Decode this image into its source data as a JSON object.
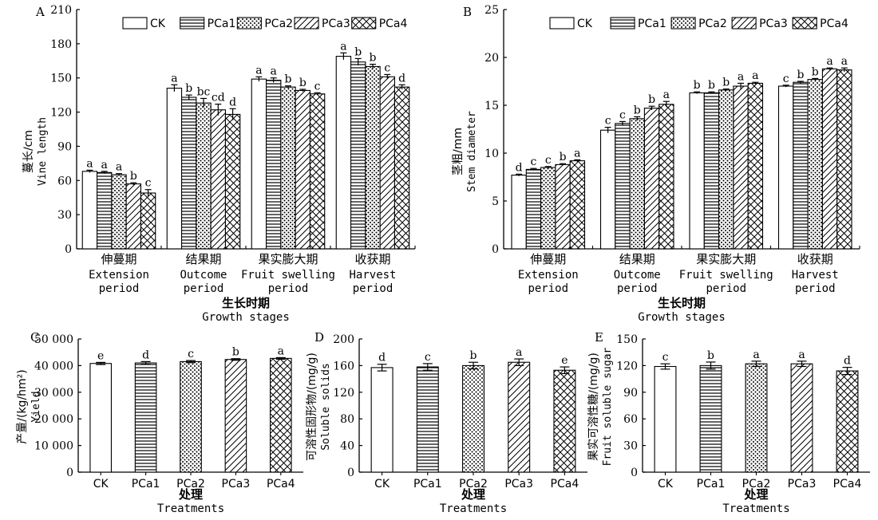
{
  "legend_labels": [
    "CK",
    "PCa1",
    "PCa2",
    "PCa3",
    "PCa4"
  ],
  "series_patterns": [
    "blank",
    "hstripes",
    "dots",
    "diagonal",
    "crosshatch"
  ],
  "chart_data": [
    {
      "panel": "A",
      "type": "bar",
      "ylabel_cn": "蔓长/cm",
      "ylabel_en": "Vine length",
      "xlabel_cn": "生长时期",
      "xlabel_en": "Growth stages",
      "ylim": [
        0,
        210
      ],
      "yticks": [
        0,
        30,
        60,
        90,
        120,
        150,
        180,
        210
      ],
      "ytick_labels": [
        "0",
        "30",
        "60",
        "90",
        "120",
        "150",
        "180",
        "210"
      ],
      "legend": "top",
      "categories": [
        {
          "cn": "伸蔓期",
          "en": [
            "Extension",
            "period"
          ]
        },
        {
          "cn": "结果期",
          "en": [
            "Outcome",
            "period"
          ]
        },
        {
          "cn": "果实膨大期",
          "en": [
            "Fruit swelling",
            "period"
          ]
        },
        {
          "cn": "收获期",
          "en": [
            "Harvest",
            "period"
          ]
        }
      ],
      "series": [
        {
          "name": "CK",
          "values": [
            68,
            141,
            149,
            169
          ],
          "errors": [
            1,
            3,
            2,
            3
          ],
          "letters": [
            "a",
            "a",
            "a",
            "a"
          ]
        },
        {
          "name": "PCa1",
          "values": [
            67,
            133,
            148,
            164
          ],
          "errors": [
            1,
            2,
            2,
            3
          ],
          "letters": [
            "a",
            "b",
            "a",
            "b"
          ]
        },
        {
          "name": "PCa2",
          "values": [
            65,
            128,
            142,
            160
          ],
          "errors": [
            1,
            4,
            1,
            2
          ],
          "letters": [
            "a",
            "bc",
            "b",
            "b"
          ]
        },
        {
          "name": "PCa3",
          "values": [
            57,
            122,
            139,
            151
          ],
          "errors": [
            1,
            5,
            1,
            2
          ],
          "letters": [
            "b",
            "cd",
            "b",
            "c"
          ]
        },
        {
          "name": "PCa4",
          "values": [
            49,
            118,
            136,
            142
          ],
          "errors": [
            3,
            5,
            1,
            2
          ],
          "letters": [
            "c",
            "d",
            "c",
            "d"
          ]
        }
      ]
    },
    {
      "panel": "B",
      "type": "bar",
      "ylabel_cn": "茎粗/mm",
      "ylabel_en": "Stem diameter",
      "xlabel_cn": "生长时期",
      "xlabel_en": "Growth stages",
      "ylim": [
        0,
        25
      ],
      "yticks": [
        0,
        5,
        10,
        15,
        20,
        25
      ],
      "ytick_labels": [
        "0",
        "5",
        "10",
        "15",
        "20",
        "25"
      ],
      "legend": "top",
      "categories": [
        {
          "cn": "伸蔓期",
          "en": [
            "Extension",
            "period"
          ]
        },
        {
          "cn": "结果期",
          "en": [
            "Outcome",
            "period"
          ]
        },
        {
          "cn": "果实膨大期",
          "en": [
            "Fruit swelling",
            "period"
          ]
        },
        {
          "cn": "收获期",
          "en": [
            "Harvest",
            "period"
          ]
        }
      ],
      "series": [
        {
          "name": "CK",
          "values": [
            7.7,
            12.4,
            16.3,
            17.0
          ],
          "errors": [
            0.1,
            0.3,
            0.1,
            0.1
          ],
          "letters": [
            "d",
            "c",
            "b",
            "c"
          ]
        },
        {
          "name": "PCa1",
          "values": [
            8.3,
            13.1,
            16.3,
            17.4
          ],
          "errors": [
            0.1,
            0.2,
            0.1,
            0.1
          ],
          "letters": [
            "c",
            "c",
            "b",
            "b"
          ]
        },
        {
          "name": "PCa2",
          "values": [
            8.5,
            13.6,
            16.6,
            17.7
          ],
          "errors": [
            0.1,
            0.2,
            0.1,
            0.1
          ],
          "letters": [
            "c",
            "b",
            "b",
            "b"
          ]
        },
        {
          "name": "PCa3",
          "values": [
            8.8,
            14.7,
            17.0,
            18.8
          ],
          "errors": [
            0.1,
            0.2,
            0.3,
            0.1
          ],
          "letters": [
            "b",
            "b",
            "a",
            "a"
          ]
        },
        {
          "name": "PCa4",
          "values": [
            9.2,
            15.1,
            17.3,
            18.7
          ],
          "errors": [
            0.1,
            0.3,
            0.1,
            0.2
          ],
          "letters": [
            "a",
            "a",
            "a",
            "a"
          ]
        }
      ]
    },
    {
      "panel": "C",
      "type": "bar",
      "ylabel_cn": "产量/(kg/hm²)",
      "ylabel_en": "Yield",
      "xlabel_cn": "处理",
      "xlabel_en": "Treatments",
      "ylim": [
        0,
        50000
      ],
      "yticks": [
        0,
        10000,
        20000,
        30000,
        40000,
        50000
      ],
      "ytick_labels": [
        "0",
        "10 000",
        "20 000",
        "30 000",
        "40 000",
        "50 000"
      ],
      "categories": [
        "CK",
        "PCa1",
        "PCa2",
        "PCa3",
        "PCa4"
      ],
      "values": [
        40800,
        41000,
        41500,
        42300,
        42700
      ],
      "errors": [
        400,
        500,
        400,
        300,
        300
      ],
      "letters": [
        "e",
        "d",
        "c",
        "b",
        "a"
      ]
    },
    {
      "panel": "D",
      "type": "bar",
      "ylabel_cn": "可溶性固形物/(mg/g)",
      "ylabel_en": "Soluble solids",
      "xlabel_cn": "处理",
      "xlabel_en": "Treatments",
      "ylim": [
        0,
        200
      ],
      "yticks": [
        0,
        40,
        80,
        120,
        160,
        200
      ],
      "ytick_labels": [
        "0",
        "40",
        "80",
        "120",
        "160",
        "200"
      ],
      "categories": [
        "CK",
        "PCa1",
        "PCa2",
        "PCa3",
        "PCa4"
      ],
      "values": [
        157,
        158,
        160,
        165,
        153
      ],
      "errors": [
        5,
        5,
        5,
        5,
        5
      ],
      "letters": [
        "d",
        "c",
        "b",
        "a",
        "e"
      ]
    },
    {
      "panel": "E",
      "type": "bar",
      "ylabel_cn": "果实可溶性糖/(mg/g)",
      "ylabel_en": "Fruit soluble sugar",
      "xlabel_cn": "处理",
      "xlabel_en": "Treatments",
      "ylim": [
        0,
        150
      ],
      "yticks": [
        0,
        30,
        60,
        90,
        120,
        150
      ],
      "ytick_labels": [
        "0",
        "30",
        "60",
        "90",
        "120",
        "150"
      ],
      "categories": [
        "CK",
        "PCa1",
        "PCa2",
        "PCa3",
        "PCa4"
      ],
      "values": [
        119,
        120,
        122,
        122,
        114
      ],
      "errors": [
        3,
        4,
        3,
        3,
        4
      ],
      "letters": [
        "c",
        "b",
        "a",
        "a",
        "d"
      ]
    }
  ]
}
